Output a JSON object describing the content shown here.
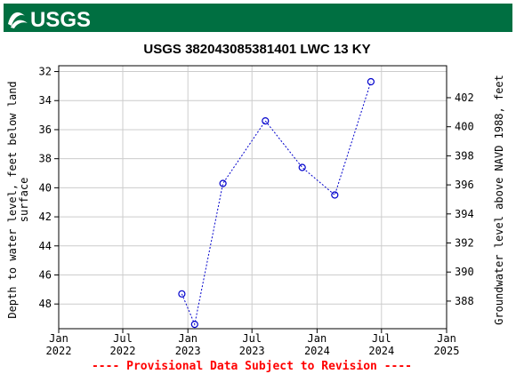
{
  "header": {
    "logo_text": "USGS",
    "brand_color": "#006f41"
  },
  "chart_data": {
    "type": "scatter",
    "title": "USGS 382043085381401 LWC 13 KY",
    "ylabel_left": [
      "Depth to water level, feet below land",
      "surface"
    ],
    "ylabel_right": "Groundwater level above NAVD 1988, feet",
    "xlabel": "",
    "left_axis": {
      "range": [
        49.7,
        31.6
      ],
      "inverted": true,
      "ticks": [
        32,
        34,
        36,
        38,
        40,
        42,
        44,
        46,
        48
      ]
    },
    "right_axis": {
      "range": [
        386.1,
        404.2
      ],
      "ticks": [
        388,
        390,
        392,
        394,
        396,
        398,
        400,
        402
      ]
    },
    "x_axis": {
      "range": [
        "2022-01-01",
        "2025-01-01"
      ],
      "ticks": [
        {
          "date": "2022-01-01",
          "line1": "Jan",
          "line2": "2022"
        },
        {
          "date": "2022-07-01",
          "line1": "Jul",
          "line2": "2022"
        },
        {
          "date": "2023-01-01",
          "line1": "Jan",
          "line2": "2023"
        },
        {
          "date": "2023-07-01",
          "line1": "Jul",
          "line2": "2023"
        },
        {
          "date": "2024-01-01",
          "line1": "Jan",
          "line2": "2024"
        },
        {
          "date": "2024-07-01",
          "line1": "Jul",
          "line2": "2024"
        },
        {
          "date": "2025-01-01",
          "line1": "Jan",
          "line2": "2025"
        }
      ]
    },
    "grid": true,
    "series": [
      {
        "color": "#0000cc",
        "points": [
          {
            "x": "2022-12-15",
            "y": 47.3
          },
          {
            "x": "2023-01-20",
            "y": 49.4
          },
          {
            "x": "2023-04-10",
            "y": 39.7
          },
          {
            "x": "2023-08-08",
            "y": 35.4
          },
          {
            "x": "2023-11-20",
            "y": 38.6
          },
          {
            "x": "2024-02-20",
            "y": 40.5
          },
          {
            "x": "2024-06-01",
            "y": 32.7
          }
        ]
      }
    ],
    "footer_note": "---- Provisional Data Subject to Revision ----",
    "footer_color": "#ff0000"
  }
}
